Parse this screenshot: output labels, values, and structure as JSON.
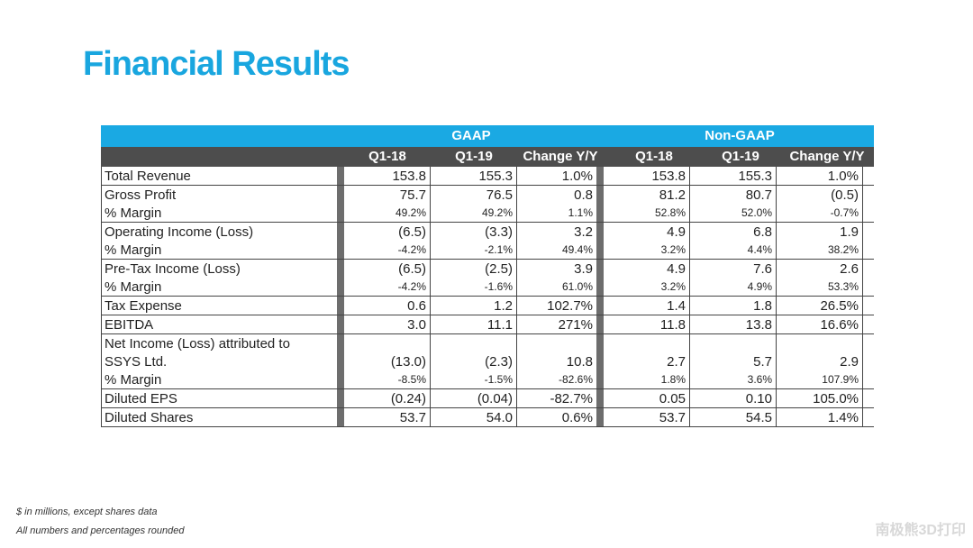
{
  "title": "Financial Results",
  "groups": [
    "GAAP",
    "Non-GAAP"
  ],
  "columns": [
    "Q1-18",
    "Q1-19",
    "Change Y/Y",
    "Q1-18",
    "Q1-19",
    "Change Y/Y"
  ],
  "rows": [
    {
      "label": [
        "Total Revenue"
      ],
      "values": [
        "153.8",
        "155.3",
        "1.0%",
        "153.8",
        "155.3",
        "1.0%"
      ]
    },
    {
      "label": [
        "Gross Profit"
      ],
      "values": [
        "75.7",
        "76.5",
        "0.8",
        "81.2",
        "80.7",
        "(0.5)"
      ],
      "sub_label": "% Margin",
      "sub_values": [
        "49.2%",
        "49.2%",
        "1.1%",
        "52.8%",
        "52.0%",
        "-0.7%"
      ]
    },
    {
      "label": [
        "Operating Income (Loss)"
      ],
      "values": [
        "(6.5)",
        "(3.3)",
        "3.2",
        "4.9",
        "6.8",
        "1.9"
      ],
      "sub_label": "% Margin",
      "sub_values": [
        "-4.2%",
        "-2.1%",
        "49.4%",
        "3.2%",
        "4.4%",
        "38.2%"
      ]
    },
    {
      "label": [
        "Pre-Tax Income (Loss)"
      ],
      "values": [
        "(6.5)",
        "(2.5)",
        "3.9",
        "4.9",
        "7.6",
        "2.6"
      ],
      "sub_label": "% Margin",
      "sub_values": [
        "-4.2%",
        "-1.6%",
        "61.0%",
        "3.2%",
        "4.9%",
        "53.3%"
      ]
    },
    {
      "label": [
        "Tax Expense"
      ],
      "values": [
        "0.6",
        "1.2",
        "102.7%",
        "1.4",
        "1.8",
        "26.5%"
      ]
    },
    {
      "label": [
        "EBITDA"
      ],
      "values": [
        "3.0",
        "11.1",
        "271%",
        "11.8",
        "13.8",
        "16.6%"
      ]
    },
    {
      "label": [
        "Net Income (Loss) attributed to",
        "SSYS Ltd."
      ],
      "values": [
        "(13.0)",
        "(2.3)",
        "10.8",
        "2.7",
        "5.7",
        "2.9"
      ],
      "sub_label": "% Margin",
      "sub_values": [
        "-8.5%",
        "-1.5%",
        "-82.6%",
        "1.8%",
        "3.6%",
        "107.9%"
      ]
    },
    {
      "label": [
        "Diluted EPS"
      ],
      "values": [
        "(0.24)",
        "(0.04)",
        "-82.7%",
        "0.05",
        "0.10",
        "105.0%"
      ]
    },
    {
      "label": [
        "Diluted Shares"
      ],
      "values": [
        "53.7",
        "54.0",
        "0.6%",
        "53.7",
        "54.5",
        "1.4%"
      ]
    }
  ],
  "footnotes": [
    "$ in millions, except shares data",
    "All numbers and percentages rounded"
  ],
  "watermark": "南极熊3D打印",
  "colors": {
    "title": "#19a6df",
    "band": "#1aa9e3",
    "header": "#4d4d4d",
    "separator": "#6d6d6d"
  }
}
